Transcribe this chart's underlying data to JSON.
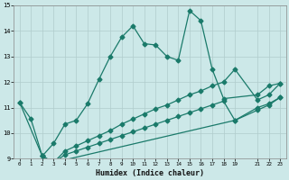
{
  "bg_color": "#cce8e8",
  "grid_color": "#b0cccc",
  "line_color": "#1a7a6a",
  "xlabel": "Humidex (Indice chaleur)",
  "ylim": [
    9,
    15
  ],
  "xlim": [
    -0.5,
    23.5
  ],
  "yticks": [
    9,
    10,
    11,
    12,
    13,
    14,
    15
  ],
  "xtick_positions": [
    0,
    1,
    2,
    3,
    4,
    5,
    6,
    7,
    8,
    9,
    10,
    11,
    12,
    13,
    14,
    15,
    16,
    17,
    18,
    19,
    21,
    22,
    23
  ],
  "xtick_labels": [
    "0",
    "1",
    "2",
    "3",
    "4",
    "5",
    "6",
    "7",
    "8",
    "9",
    "10",
    "11",
    "12",
    "13",
    "14",
    "15",
    "16",
    "17",
    "18",
    "19",
    "21",
    "22",
    "23"
  ],
  "series1_x": [
    0,
    1,
    2,
    3,
    4,
    5,
    6,
    7,
    8,
    9,
    10,
    11,
    12,
    13,
    14,
    15,
    16,
    17,
    18,
    21,
    22,
    23
  ],
  "series1_y": [
    11.2,
    10.55,
    9.1,
    9.6,
    10.35,
    10.5,
    11.15,
    12.1,
    13.0,
    13.75,
    14.2,
    13.5,
    13.45,
    13.0,
    12.85,
    14.8,
    14.4,
    12.5,
    11.35,
    11.5,
    11.85,
    11.95
  ],
  "series2_x": [
    0,
    2,
    3,
    4,
    5,
    6,
    7,
    8,
    9,
    10,
    11,
    12,
    13,
    14,
    15,
    16,
    17,
    18,
    19,
    21,
    22,
    23
  ],
  "series2_y": [
    11.2,
    9.1,
    8.85,
    9.3,
    9.5,
    9.7,
    9.9,
    10.1,
    10.35,
    10.55,
    10.75,
    10.95,
    11.1,
    11.3,
    11.5,
    11.65,
    11.85,
    12.0,
    12.5,
    11.3,
    11.5,
    11.95
  ],
  "series3_x": [
    2,
    3,
    4,
    5,
    6,
    7,
    8,
    9,
    10,
    11,
    12,
    13,
    14,
    15,
    16,
    17,
    18,
    19,
    21,
    22,
    23
  ],
  "series3_y": [
    9.1,
    8.85,
    9.15,
    9.3,
    9.45,
    9.6,
    9.75,
    9.9,
    10.05,
    10.2,
    10.35,
    10.5,
    10.65,
    10.8,
    10.95,
    11.1,
    11.25,
    10.5,
    11.0,
    11.15,
    11.4
  ],
  "series4_x": [
    2,
    3,
    19,
    21,
    22,
    23
  ],
  "series4_y": [
    9.1,
    8.85,
    10.5,
    10.9,
    11.1,
    11.4
  ],
  "marker_size": 2.5,
  "linewidth": 0.9
}
